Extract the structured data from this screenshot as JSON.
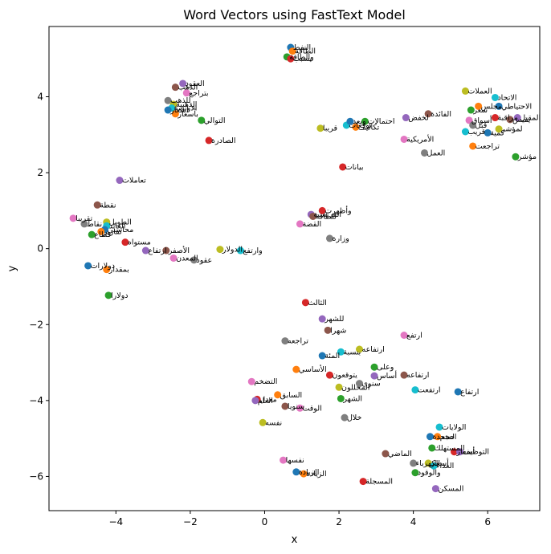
{
  "chart_data": {
    "type": "scatter",
    "title": "Word Vectors using FastText Model",
    "xlabel": "x",
    "ylabel": "y",
    "xlim": [
      -5.8,
      7.4
    ],
    "ylim": [
      -6.9,
      5.85
    ],
    "xticks": [
      -4,
      -2,
      0,
      2,
      4,
      6
    ],
    "yticks": [
      -6,
      -4,
      -2,
      0,
      2,
      4
    ],
    "xtick_labels": [
      "−4",
      "−2",
      "0",
      "2",
      "4",
      "6"
    ],
    "ytick_labels": [
      "−6",
      "−4",
      "−2",
      "0",
      "2",
      "4"
    ],
    "grid": false,
    "legend": "none",
    "palette": [
      "#1f77b4",
      "#ff7f0e",
      "#2ca02c",
      "#d62728",
      "#9467bd",
      "#8c564b",
      "#e377c2",
      "#7f7f7f",
      "#bcbd22",
      "#17becf"
    ],
    "points": [
      {
        "x": 0.7,
        "y": 5.3,
        "label": "النفط"
      },
      {
        "x": 0.75,
        "y": 5.2,
        "label": "الطاقة"
      },
      {
        "x": 0.6,
        "y": 5.05,
        "label": "والطاقة"
      },
      {
        "x": 0.7,
        "y": 5.0,
        "label": "بسبب"
      },
      {
        "x": -2.2,
        "y": 4.35,
        "label": "العقود"
      },
      {
        "x": -2.4,
        "y": 4.25,
        "label": "الذهب"
      },
      {
        "x": -2.1,
        "y": 4.1,
        "label": "بتراجع"
      },
      {
        "x": -2.6,
        "y": 3.9,
        "label": "للذهب"
      },
      {
        "x": -2.45,
        "y": 3.8,
        "label": "الذهبية"
      },
      {
        "x": -2.5,
        "y": 3.7,
        "label": "الأونصة"
      },
      {
        "x": -2.6,
        "y": 3.65,
        "label": "أسعار"
      },
      {
        "x": -2.4,
        "y": 3.55,
        "label": "بأسعار"
      },
      {
        "x": -1.7,
        "y": 3.38,
        "label": "التوالي"
      },
      {
        "x": -1.5,
        "y": 2.85,
        "label": "الصادرة"
      },
      {
        "x": -3.9,
        "y": 1.8,
        "label": "تعاملات"
      },
      {
        "x": -4.5,
        "y": 1.15,
        "label": "نقطة"
      },
      {
        "x": -5.15,
        "y": 0.8,
        "label": "تقريبا"
      },
      {
        "x": -4.85,
        "y": 0.65,
        "label": "نقاط"
      },
      {
        "x": -4.25,
        "y": 0.7,
        "label": "الطويل"
      },
      {
        "x": -4.25,
        "y": 0.6,
        "label": "العائد"
      },
      {
        "x": -4.3,
        "y": 0.5,
        "label": "محاسبي"
      },
      {
        "x": -4.4,
        "y": 0.45,
        "label": "تقارير"
      },
      {
        "x": -4.65,
        "y": 0.37,
        "label": "قطاع"
      },
      {
        "x": -3.75,
        "y": 0.17,
        "label": "مستواه"
      },
      {
        "x": -3.2,
        "y": -0.05,
        "label": "ارتفاع"
      },
      {
        "x": -2.65,
        "y": -0.05,
        "label": "الأصفر"
      },
      {
        "x": -2.45,
        "y": -0.25,
        "label": "المعدن"
      },
      {
        "x": -1.9,
        "y": -0.3,
        "label": "عقود"
      },
      {
        "x": -1.2,
        "y": -0.02,
        "label": "الدولار"
      },
      {
        "x": -0.65,
        "y": -0.05,
        "label": "وارتفع"
      },
      {
        "x": -4.75,
        "y": -0.45,
        "label": "دولارات"
      },
      {
        "x": -4.25,
        "y": -0.55,
        "label": "بمقدار"
      },
      {
        "x": -4.2,
        "y": -1.23,
        "label": "دولارا"
      },
      {
        "x": 1.55,
        "y": 1.0,
        "label": "وأظهرت"
      },
      {
        "x": 1.25,
        "y": 0.9,
        "label": "الفرنسية"
      },
      {
        "x": 1.3,
        "y": 0.85,
        "label": "للطاقة"
      },
      {
        "x": 0.95,
        "y": 0.65,
        "label": "القضة"
      },
      {
        "x": 1.75,
        "y": 0.27,
        "label": "وزارة"
      },
      {
        "x": 1.5,
        "y": 3.17,
        "label": "قريبا"
      },
      {
        "x": 2.2,
        "y": 3.25,
        "label": "توقعات"
      },
      {
        "x": 2.3,
        "y": 3.35,
        "label": "ويعد"
      },
      {
        "x": 2.45,
        "y": 3.2,
        "label": "تكاليف"
      },
      {
        "x": 2.7,
        "y": 3.35,
        "label": "احتمالات"
      },
      {
        "x": 2.1,
        "y": 2.15,
        "label": "بيانات"
      },
      {
        "x": 3.8,
        "y": 3.45,
        "label": "لخفض"
      },
      {
        "x": 4.4,
        "y": 3.55,
        "label": "الفائدة"
      },
      {
        "x": 3.75,
        "y": 2.88,
        "label": "الأمريكية"
      },
      {
        "x": 4.3,
        "y": 2.52,
        "label": "العمل"
      },
      {
        "x": 5.4,
        "y": 4.15,
        "label": "العملات"
      },
      {
        "x": 6.2,
        "y": 3.98,
        "label": "الاتحاد"
      },
      {
        "x": 6.3,
        "y": 3.75,
        "label": "الاحتياطي"
      },
      {
        "x": 5.75,
        "y": 3.75,
        "label": "مجلس"
      },
      {
        "x": 5.55,
        "y": 3.65,
        "label": "سعر"
      },
      {
        "x": 6.2,
        "y": 3.45,
        "label": "مراقبة"
      },
      {
        "x": 6.8,
        "y": 3.45,
        "label": "المقبل"
      },
      {
        "x": 6.6,
        "y": 3.4,
        "label": "يقيس"
      },
      {
        "x": 5.5,
        "y": 3.38,
        "label": "أسواق"
      },
      {
        "x": 5.6,
        "y": 3.25,
        "label": "قبل"
      },
      {
        "x": 6.3,
        "y": 3.15,
        "label": "لمؤشر"
      },
      {
        "x": 5.4,
        "y": 3.08,
        "label": "قريب"
      },
      {
        "x": 6.0,
        "y": 3.05,
        "label": "كمية"
      },
      {
        "x": 5.6,
        "y": 2.7,
        "label": "تراجعت"
      },
      {
        "x": 6.75,
        "y": 2.42,
        "label": "مؤشر"
      },
      {
        "x": 1.1,
        "y": -1.42,
        "label": "الثالث"
      },
      {
        "x": 1.55,
        "y": -1.85,
        "label": "للشهر"
      },
      {
        "x": 1.7,
        "y": -2.15,
        "label": "شهرا"
      },
      {
        "x": 3.75,
        "y": -2.28,
        "label": "ارتفع"
      },
      {
        "x": 0.55,
        "y": -2.43,
        "label": "تراجعه"
      },
      {
        "x": 2.55,
        "y": -2.65,
        "label": "ارتفاعه"
      },
      {
        "x": 2.05,
        "y": -2.72,
        "label": "بنسبة"
      },
      {
        "x": 1.55,
        "y": -2.82,
        "label": "المئة"
      },
      {
        "x": 0.85,
        "y": -3.18,
        "label": "الأساسي"
      },
      {
        "x": 2.95,
        "y": -3.12,
        "label": "وعلى"
      },
      {
        "x": 1.75,
        "y": -3.33,
        "label": "يتوقعون"
      },
      {
        "x": 2.95,
        "y": -3.35,
        "label": "أساس"
      },
      {
        "x": 3.75,
        "y": -3.33,
        "label": "ارتفاعه"
      },
      {
        "x": -0.35,
        "y": -3.5,
        "label": "التضخم"
      },
      {
        "x": 2.55,
        "y": -3.55,
        "label": "سنوي"
      },
      {
        "x": 2.0,
        "y": -3.65,
        "label": "المحللون"
      },
      {
        "x": 4.05,
        "y": -3.72,
        "label": "ارتفعت"
      },
      {
        "x": 5.2,
        "y": -3.77,
        "label": "ارتفاع"
      },
      {
        "x": 0.35,
        "y": -3.85,
        "label": "السابق"
      },
      {
        "x": 2.05,
        "y": -3.95,
        "label": "الشهر"
      },
      {
        "x": -0.2,
        "y": -3.97,
        "label": "معدل"
      },
      {
        "x": -0.25,
        "y": -4.0,
        "label": "العام"
      },
      {
        "x": 0.55,
        "y": -4.15,
        "label": "سنويا"
      },
      {
        "x": 0.95,
        "y": -4.2,
        "label": "الوقت"
      },
      {
        "x": 2.15,
        "y": -4.45,
        "label": "خلال"
      },
      {
        "x": -0.05,
        "y": -4.58,
        "label": "نفسه"
      },
      {
        "x": 4.7,
        "y": -4.7,
        "label": "الولايات"
      },
      {
        "x": 4.45,
        "y": -4.95,
        "label": "المتحدة"
      },
      {
        "x": 4.65,
        "y": -4.95,
        "label": "حجم"
      },
      {
        "x": 4.5,
        "y": -5.25,
        "label": "المستهلك"
      },
      {
        "x": 5.1,
        "y": -5.35,
        "label": "أسعار"
      },
      {
        "x": 5.25,
        "y": -5.35,
        "label": "التوظيف"
      },
      {
        "x": 3.25,
        "y": -5.4,
        "label": "الماضي"
      },
      {
        "x": 0.5,
        "y": -5.57,
        "label": "نفسها"
      },
      {
        "x": 4.0,
        "y": -5.65,
        "label": "الكهرباء"
      },
      {
        "x": 4.4,
        "y": -5.65,
        "label": "أسعار"
      },
      {
        "x": 4.55,
        "y": -5.72,
        "label": "الغذاء"
      },
      {
        "x": 0.85,
        "y": -5.88,
        "label": "الزيادة"
      },
      {
        "x": 1.05,
        "y": -5.93,
        "label": "الزيادة"
      },
      {
        "x": 4.05,
        "y": -5.9,
        "label": "والوقود"
      },
      {
        "x": 2.65,
        "y": -6.13,
        "label": "المسجلة"
      },
      {
        "x": 4.6,
        "y": -6.32,
        "label": "المسكن"
      }
    ]
  }
}
